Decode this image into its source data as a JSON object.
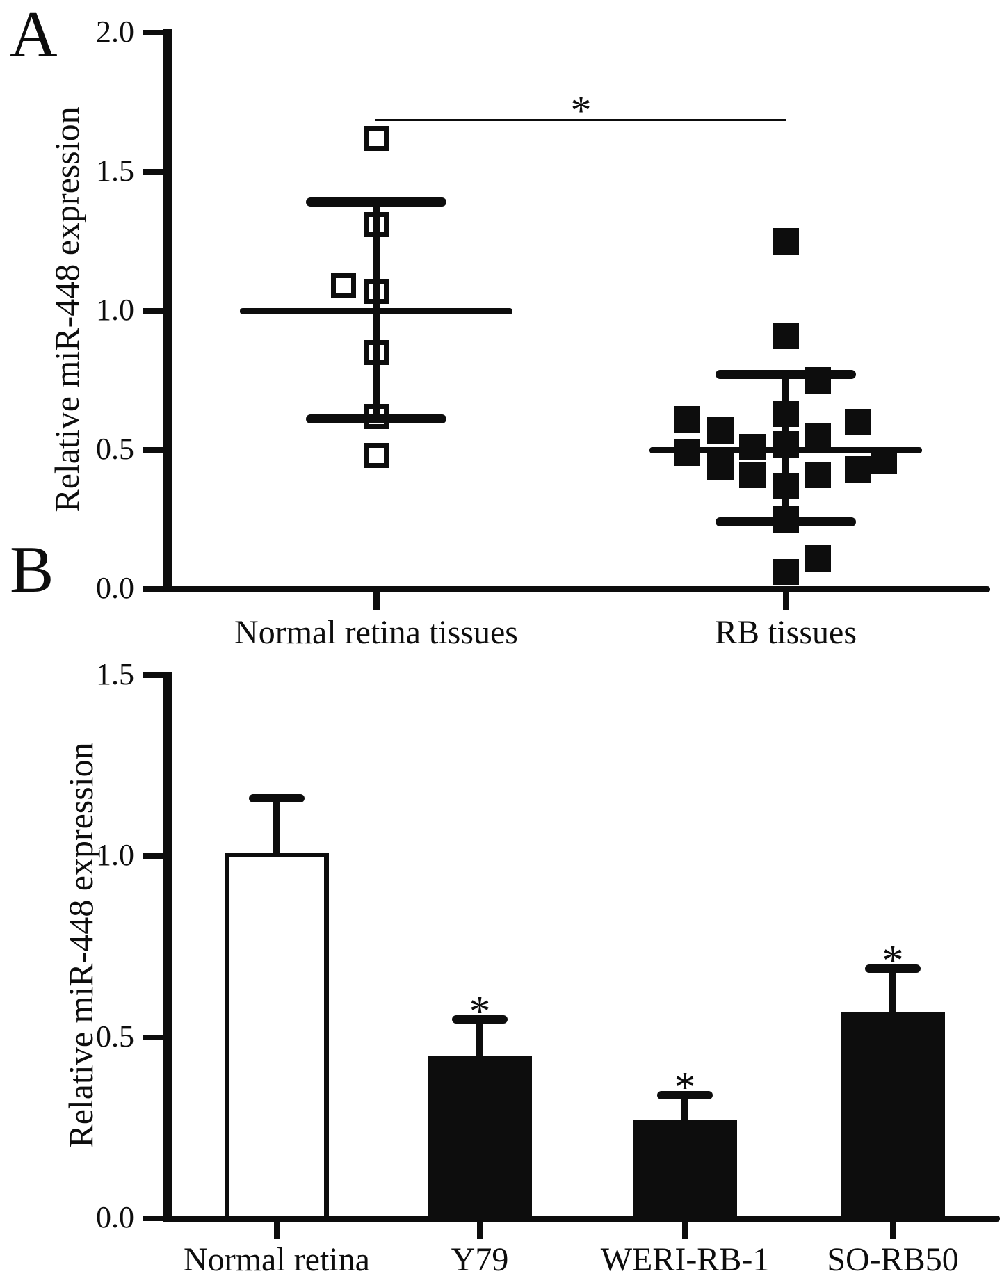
{
  "panel_labels": [
    "A",
    "B"
  ],
  "colors": {
    "ink": "#0d0d0d",
    "background": "#ffffff"
  },
  "chart_data": [
    {
      "panel": "A",
      "type": "scatter",
      "title": "",
      "xlabel": "",
      "ylabel": "Relative miR-448 expression",
      "ylim": [
        0.0,
        2.0
      ],
      "yticks": [
        2.0,
        1.5,
        1.0,
        0.5,
        0.0
      ],
      "ytick_labels": [
        "2.0",
        "1.5",
        "1.0",
        "0.5",
        "0.0"
      ],
      "categories": [
        "Normal retina tissues",
        "RB tissues"
      ],
      "grid": false,
      "legend": "none",
      "groups": [
        {
          "label": "Normal retina tissues",
          "marker": "open-square",
          "mean": 1.0,
          "sd_upper": 1.39,
          "sd_lower": 0.61,
          "points": [
            {
              "value": 1.62,
              "dx": 0
            },
            {
              "value": 1.31,
              "dx": 0
            },
            {
              "value": 1.09,
              "dx": -47
            },
            {
              "value": 1.07,
              "dx": 0
            },
            {
              "value": 0.85,
              "dx": 0
            },
            {
              "value": 0.62,
              "dx": 0
            },
            {
              "value": 0.48,
              "dx": 0
            }
          ]
        },
        {
          "label": "RB tissues",
          "marker": "filled-square",
          "mean": 0.5,
          "sd_upper": 0.77,
          "sd_lower": 0.24,
          "points": [
            {
              "value": 1.25,
              "dx": 0
            },
            {
              "value": 0.91,
              "dx": 0
            },
            {
              "value": 0.75,
              "dx": 46
            },
            {
              "value": 0.63,
              "dx": 0
            },
            {
              "value": 0.61,
              "dx": -142
            },
            {
              "value": 0.6,
              "dx": 104
            },
            {
              "value": 0.57,
              "dx": -94
            },
            {
              "value": 0.55,
              "dx": 46
            },
            {
              "value": 0.52,
              "dx": 0
            },
            {
              "value": 0.51,
              "dx": -48
            },
            {
              "value": 0.49,
              "dx": -142
            },
            {
              "value": 0.46,
              "dx": 141
            },
            {
              "value": 0.44,
              "dx": -94
            },
            {
              "value": 0.43,
              "dx": 104
            },
            {
              "value": 0.41,
              "dx": -48
            },
            {
              "value": 0.41,
              "dx": 46
            },
            {
              "value": 0.37,
              "dx": 0
            },
            {
              "value": 0.25,
              "dx": 0
            },
            {
              "value": 0.11,
              "dx": 46
            },
            {
              "value": 0.06,
              "dx": 0
            }
          ]
        }
      ],
      "significance": {
        "label": "*",
        "bar_level": 1.69,
        "between": [
          "Normal retina tissues",
          "RB tissues"
        ]
      }
    },
    {
      "panel": "B",
      "type": "bar",
      "title": "",
      "xlabel": "",
      "ylabel": "Relative miR-448 expression",
      "ylim": [
        0.0,
        1.5
      ],
      "yticks": [
        1.5,
        1.0,
        0.5,
        0.0
      ],
      "ytick_labels": [
        "1.5",
        "1.0",
        "0.5",
        "0.0"
      ],
      "categories": [
        "Normal retina",
        "Y79",
        "WERI-RB-1",
        "SO-RB50"
      ],
      "values": [
        1.01,
        0.45,
        0.27,
        0.57
      ],
      "errors_upper": [
        0.15,
        0.1,
        0.07,
        0.12
      ],
      "bar_fills": [
        "#ffffff",
        "#0d0d0d",
        "#0d0d0d",
        "#0d0d0d"
      ],
      "significance_labels": [
        "",
        "*",
        "*",
        "*"
      ],
      "grid": false,
      "legend": "none"
    }
  ]
}
